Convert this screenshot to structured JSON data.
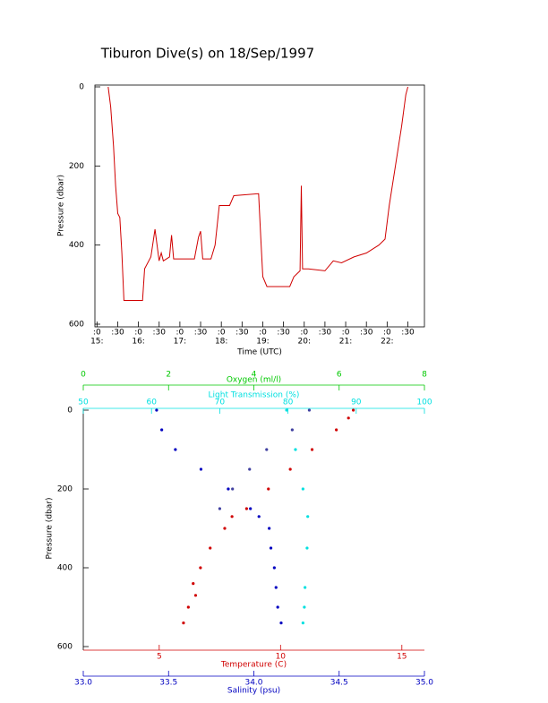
{
  "chart_data": [
    {
      "type": "line",
      "title": "Tiburon Dive(s) on 18/Sep/1997",
      "xlabel": "Time (UTC)",
      "ylabel": "Pressure (dbar)",
      "x": [
        15.27,
        15.33,
        15.4,
        15.45,
        15.5,
        15.55,
        15.6,
        15.65,
        16.1,
        16.15,
        16.3,
        16.4,
        16.45,
        16.5,
        16.55,
        16.6,
        16.75,
        16.8,
        16.85,
        17.35,
        17.45,
        17.5,
        17.55,
        17.75,
        17.85,
        17.95,
        18.2,
        18.3,
        18.9,
        18.95,
        19.0,
        19.1,
        19.65,
        19.75,
        19.9,
        19.93,
        19.96,
        20.1,
        20.5,
        20.7,
        20.9,
        21.2,
        21.5,
        21.8,
        21.95,
        22.05,
        22.2,
        22.35,
        22.45,
        22.5
      ],
      "series": [
        {
          "color": "#d00000",
          "values": [
            0,
            50,
            150,
            250,
            320,
            330,
            420,
            540,
            540,
            460,
            430,
            360,
            400,
            440,
            420,
            440,
            430,
            375,
            435,
            435,
            380,
            365,
            435,
            435,
            400,
            300,
            300,
            275,
            270,
            380,
            480,
            505,
            505,
            480,
            465,
            250,
            460,
            460,
            465,
            440,
            445,
            430,
            420,
            400,
            385,
            300,
            200,
            100,
            20,
            0
          ]
        }
      ],
      "xlim": [
        14.95,
        22.9
      ],
      "xticks": [
        {
          "value": 15,
          "label": ":0"
        },
        {
          "value": 15.5,
          "label": ":30"
        },
        {
          "value": 16,
          "label": ":0"
        },
        {
          "value": 16.5,
          "label": ":30"
        },
        {
          "value": 17,
          "label": ":0"
        },
        {
          "value": 17.5,
          "label": ":30"
        },
        {
          "value": 18,
          "label": ":0"
        },
        {
          "value": 18.5,
          "label": ":30"
        },
        {
          "value": 19,
          "label": ":0"
        },
        {
          "value": 19.5,
          "label": ":30"
        },
        {
          "value": 20,
          "label": ":0"
        },
        {
          "value": 20.5,
          "label": ":30"
        },
        {
          "value": 21,
          "label": ":0"
        },
        {
          "value": 21.5,
          "label": ":30"
        },
        {
          "value": 22,
          "label": ":0"
        },
        {
          "value": 22.5,
          "label": ":30"
        }
      ],
      "xticks_hour": [
        {
          "value": 15,
          "label": "15:"
        },
        {
          "value": 16,
          "label": "16:"
        },
        {
          "value": 17,
          "label": "17:"
        },
        {
          "value": 18,
          "label": "18:"
        },
        {
          "value": 19,
          "label": "19:"
        },
        {
          "value": 20,
          "label": "20:"
        },
        {
          "value": 21,
          "label": "21:"
        },
        {
          "value": 22,
          "label": "22:"
        }
      ],
      "ylim": [
        0,
        600
      ],
      "yticks": [
        0,
        200,
        400,
        600
      ],
      "y_inverted": true
    },
    {
      "type": "scatter",
      "ylabel": "Pressure (dbar)",
      "ylim": [
        0,
        600
      ],
      "yticks": [
        0,
        200,
        400,
        600
      ],
      "y_inverted": true,
      "x_axes": [
        {
          "label": "Oxygen (ml/l)",
          "color": "#00c800",
          "lim": [
            0,
            8
          ],
          "ticks": [
            0,
            2,
            4,
            6,
            8
          ]
        },
        {
          "label": "Light Transmission (%)",
          "color": "#00e0e0",
          "lim": [
            50,
            100
          ],
          "ticks": [
            50,
            60,
            70,
            80,
            90,
            100
          ]
        },
        {
          "label": "Temperature (C)",
          "color": "#d00000",
          "lim": [
            1.87,
            15.93
          ],
          "ticks": [
            5,
            10,
            15
          ]
        },
        {
          "label": "Salinity (psu)",
          "color": "#0000c0",
          "lim": [
            33,
            35
          ],
          "ticks": [
            {
              "value": 33,
              "label": "33.0"
            },
            {
              "value": 33.5,
              "label": "33.5"
            },
            {
              "value": 34,
              "label": "34.0"
            },
            {
              "value": 34.5,
              "label": "34.5"
            },
            {
              "value": 35,
              "label": "35.0"
            }
          ]
        }
      ],
      "series": [
        {
          "x_axis": 0,
          "color": "#4040a0",
          "x": [
            5.3,
            4.9,
            4.3,
            3.9,
            3.5,
            3.2
          ],
          "values": [
            0,
            50,
            100,
            150,
            200,
            250
          ]
        },
        {
          "x_axis": 1,
          "color": "#00e0e0",
          "x": [
            79.8,
            81.1,
            82.2,
            82.9,
            82.8,
            82.5,
            82.4,
            82.2
          ],
          "values": [
            0,
            100,
            200,
            270,
            350,
            450,
            500,
            540
          ]
        },
        {
          "x_axis": 2,
          "color": "#d00000",
          "x": [
            13.0,
            12.8,
            12.3,
            11.3,
            10.4,
            9.5,
            8.6,
            8.0,
            7.7,
            7.1,
            6.7,
            6.4,
            6.5,
            6.2,
            6.0
          ],
          "values": [
            0,
            20,
            50,
            100,
            150,
            200,
            250,
            270,
            300,
            350,
            400,
            440,
            470,
            500,
            540
          ]
        },
        {
          "x_axis": 3,
          "color": "#0000c0",
          "x": [
            33.43,
            33.46,
            33.54,
            33.69,
            33.85,
            33.98,
            34.03,
            34.09,
            34.1,
            34.12,
            34.13,
            34.14,
            34.16
          ],
          "values": [
            0,
            50,
            100,
            150,
            200,
            250,
            270,
            300,
            350,
            400,
            450,
            500,
            540
          ]
        }
      ]
    }
  ]
}
